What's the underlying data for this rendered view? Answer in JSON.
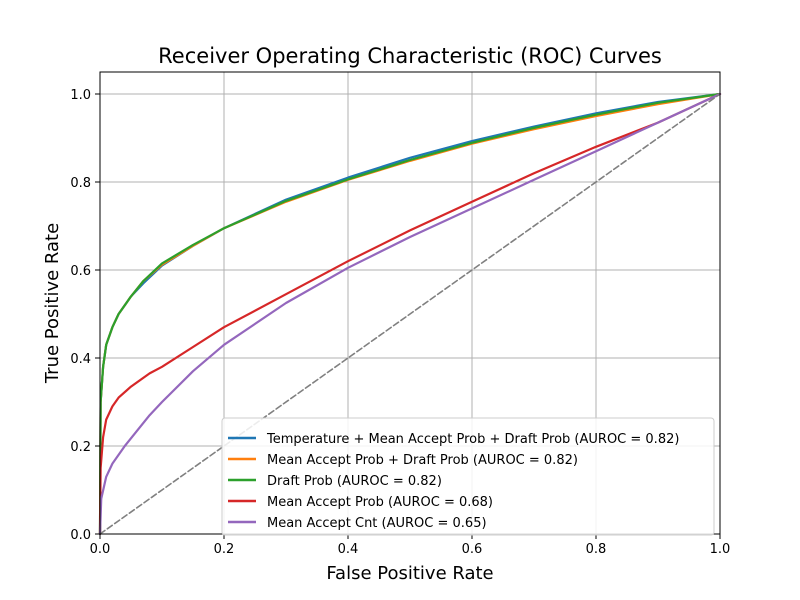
{
  "chart_data": {
    "type": "line",
    "title": "Receiver Operating Characteristic (ROC) Curves",
    "xlabel": "False Positive Rate",
    "ylabel": "True Positive Rate",
    "xlim": [
      0,
      1
    ],
    "ylim": [
      0,
      1.05
    ],
    "x_ticks": [
      "0.0",
      "0.2",
      "0.4",
      "0.6",
      "0.8",
      "1.0"
    ],
    "y_ticks": [
      "0.0",
      "0.2",
      "0.4",
      "0.6",
      "0.8",
      "1.0"
    ],
    "grid": true,
    "legend_position": "lower-right",
    "series": [
      {
        "name": "Temperature + Mean Accept Prob + Draft Prob (AUROC = 0.82)",
        "color": "#1f77b4",
        "x": [
          0,
          0.001,
          0.005,
          0.01,
          0.02,
          0.03,
          0.05,
          0.07,
          0.1,
          0.15,
          0.2,
          0.3,
          0.4,
          0.5,
          0.6,
          0.7,
          0.8,
          0.9,
          1.0
        ],
        "y": [
          0,
          0.3,
          0.38,
          0.43,
          0.47,
          0.5,
          0.54,
          0.57,
          0.61,
          0.655,
          0.695,
          0.76,
          0.81,
          0.855,
          0.893,
          0.926,
          0.956,
          0.982,
          1.0
        ]
      },
      {
        "name": "Mean Accept Prob + Draft Prob (AUROC = 0.82)",
        "color": "#ff7f0e",
        "x": [
          0,
          0.001,
          0.005,
          0.01,
          0.02,
          0.03,
          0.05,
          0.07,
          0.1,
          0.15,
          0.2,
          0.3,
          0.4,
          0.5,
          0.6,
          0.7,
          0.8,
          0.9,
          1.0
        ],
        "y": [
          0,
          0.3,
          0.38,
          0.43,
          0.47,
          0.5,
          0.54,
          0.575,
          0.612,
          0.655,
          0.695,
          0.755,
          0.805,
          0.848,
          0.887,
          0.92,
          0.95,
          0.977,
          1.0
        ]
      },
      {
        "name": "Draft Prob (AUROC = 0.82)",
        "color": "#2ca02c",
        "x": [
          0,
          0.001,
          0.005,
          0.01,
          0.02,
          0.03,
          0.05,
          0.07,
          0.1,
          0.15,
          0.2,
          0.3,
          0.4,
          0.5,
          0.6,
          0.7,
          0.8,
          0.9,
          1.0
        ],
        "y": [
          0,
          0.3,
          0.38,
          0.43,
          0.47,
          0.5,
          0.54,
          0.575,
          0.615,
          0.657,
          0.695,
          0.757,
          0.806,
          0.85,
          0.889,
          0.923,
          0.953,
          0.98,
          1.0
        ]
      },
      {
        "name": "Mean Accept Prob (AUROC = 0.68)",
        "color": "#d62728",
        "x": [
          0,
          0.001,
          0.005,
          0.01,
          0.02,
          0.03,
          0.05,
          0.08,
          0.1,
          0.15,
          0.2,
          0.3,
          0.4,
          0.5,
          0.6,
          0.7,
          0.8,
          0.9,
          1.0
        ],
        "y": [
          0,
          0.15,
          0.22,
          0.26,
          0.29,
          0.31,
          0.335,
          0.365,
          0.38,
          0.425,
          0.47,
          0.545,
          0.62,
          0.69,
          0.755,
          0.82,
          0.88,
          0.935,
          1.0
        ]
      },
      {
        "name": "Mean Accept Cnt (AUROC = 0.65)",
        "color": "#9467bd",
        "x": [
          0,
          0.002,
          0.01,
          0.02,
          0.04,
          0.06,
          0.08,
          0.1,
          0.15,
          0.2,
          0.3,
          0.4,
          0.5,
          0.6,
          0.7,
          0.8,
          0.9,
          1.0
        ],
        "y": [
          0,
          0.08,
          0.13,
          0.16,
          0.2,
          0.235,
          0.27,
          0.3,
          0.37,
          0.43,
          0.525,
          0.605,
          0.675,
          0.74,
          0.805,
          0.87,
          0.935,
          1.0
        ]
      },
      {
        "name": "",
        "color": "#808080",
        "dashed": true,
        "x": [
          0,
          1
        ],
        "y": [
          0,
          1
        ]
      }
    ]
  }
}
